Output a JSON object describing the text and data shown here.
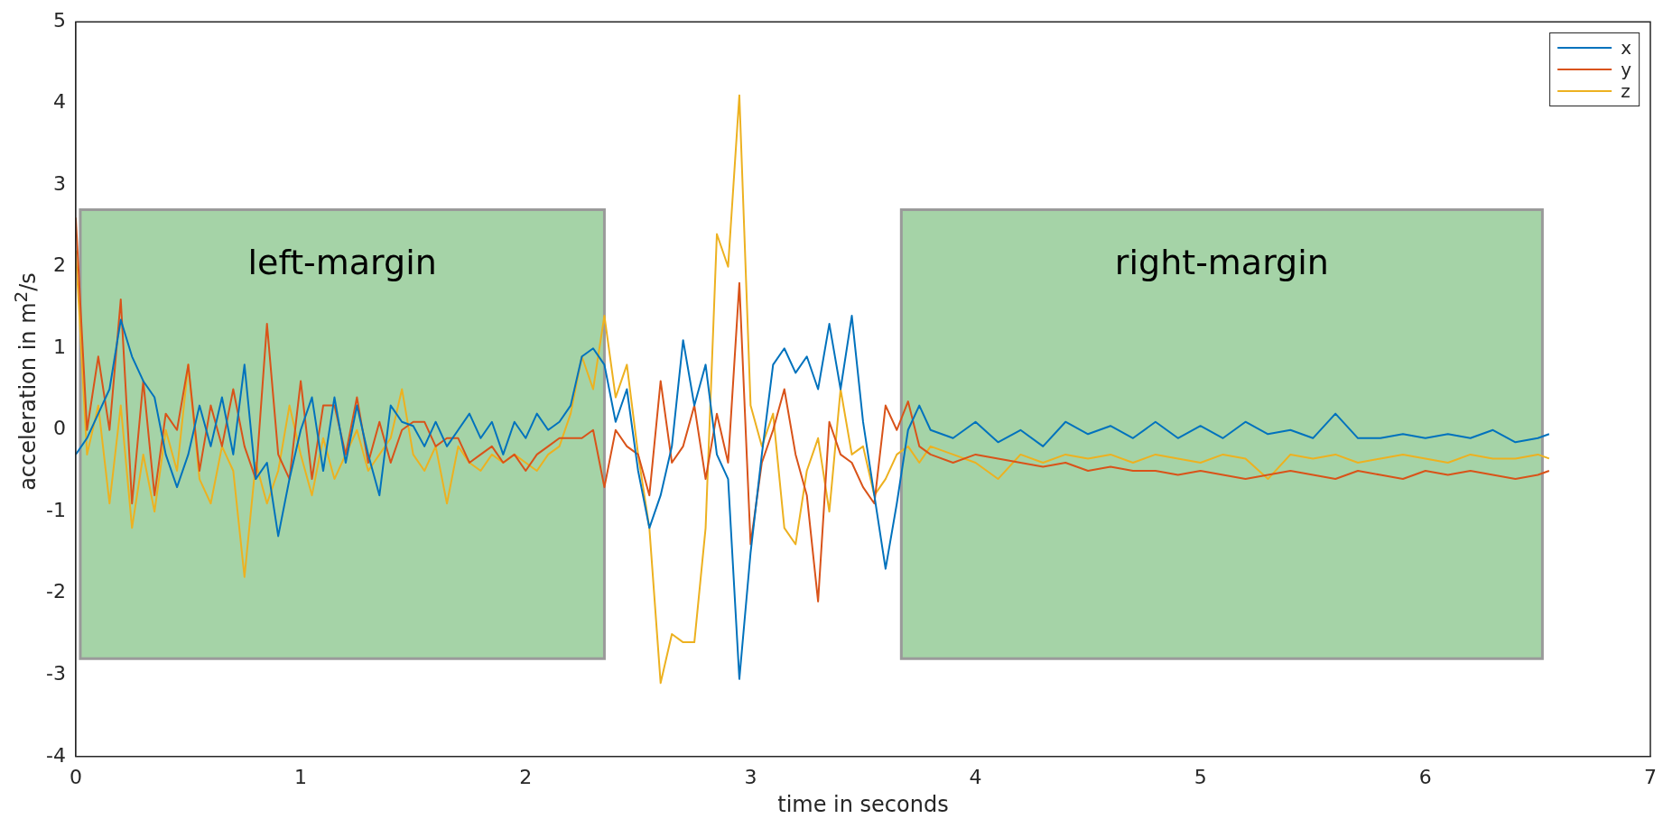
{
  "chart_data": {
    "type": "line",
    "xlabel": "time in seconds",
    "ylabel": "acceleration in m$^{2}$/s",
    "x": [
      0,
      0.05,
      0.1,
      0.15,
      0.2,
      0.25,
      0.3,
      0.35,
      0.4,
      0.45,
      0.5,
      0.55,
      0.6,
      0.65,
      0.7,
      0.75,
      0.8,
      0.85,
      0.9,
      0.95,
      1.0,
      1.05,
      1.1,
      1.15,
      1.2,
      1.25,
      1.3,
      1.35,
      1.4,
      1.45,
      1.5,
      1.55,
      1.6,
      1.65,
      1.7,
      1.75,
      1.8,
      1.85,
      1.9,
      1.95,
      2.0,
      2.05,
      2.1,
      2.15,
      2.2,
      2.25,
      2.3,
      2.35,
      2.4,
      2.45,
      2.5,
      2.55,
      2.6,
      2.65,
      2.7,
      2.75,
      2.8,
      2.85,
      2.9,
      2.95,
      3.0,
      3.05,
      3.1,
      3.15,
      3.2,
      3.25,
      3.3,
      3.35,
      3.4,
      3.45,
      3.5,
      3.55,
      3.6,
      3.65,
      3.7,
      3.75,
      3.8,
      3.9,
      4.0,
      4.1,
      4.2,
      4.3,
      4.4,
      4.5,
      4.6,
      4.7,
      4.8,
      4.9,
      5.0,
      5.1,
      5.2,
      5.3,
      5.4,
      5.5,
      5.6,
      5.7,
      5.8,
      5.9,
      6.0,
      6.1,
      6.2,
      6.3,
      6.4,
      6.5,
      6.55
    ],
    "series": [
      {
        "name": "x",
        "color": "#0072bd",
        "values": [
          -0.3,
          -0.1,
          0.2,
          0.5,
          1.35,
          0.9,
          0.6,
          0.4,
          -0.3,
          -0.7,
          -0.3,
          0.3,
          -0.2,
          0.4,
          -0.3,
          0.8,
          -0.6,
          -0.4,
          -1.3,
          -0.6,
          0.0,
          0.4,
          -0.5,
          0.4,
          -0.4,
          0.3,
          -0.3,
          -0.8,
          0.3,
          0.1,
          0.05,
          -0.2,
          0.1,
          -0.2,
          0.0,
          0.2,
          -0.1,
          0.1,
          -0.3,
          0.1,
          -0.1,
          0.2,
          0.0,
          0.1,
          0.3,
          0.9,
          1.0,
          0.8,
          0.1,
          0.5,
          -0.5,
          -1.2,
          -0.8,
          -0.2,
          1.1,
          0.3,
          0.8,
          -0.3,
          -0.6,
          -3.05,
          -1.5,
          -0.3,
          0.8,
          1.0,
          0.7,
          0.9,
          0.5,
          1.3,
          0.5,
          1.4,
          0.1,
          -0.8,
          -1.7,
          -0.9,
          0.0,
          0.3,
          0.0,
          -0.1,
          0.1,
          -0.15,
          0.0,
          -0.2,
          0.1,
          -0.05,
          0.05,
          -0.1,
          0.1,
          -0.1,
          0.05,
          -0.1,
          0.1,
          -0.05,
          0.0,
          -0.1,
          0.2,
          -0.1,
          -0.1,
          -0.05,
          -0.1,
          -0.05,
          -0.1,
          0.0,
          -0.15,
          -0.1,
          -0.05
        ]
      },
      {
        "name": "y",
        "color": "#d95319",
        "values": [
          2.6,
          0.0,
          0.9,
          0.0,
          1.6,
          -0.9,
          0.6,
          -0.8,
          0.2,
          0.0,
          0.8,
          -0.5,
          0.3,
          -0.2,
          0.5,
          -0.2,
          -0.6,
          1.3,
          -0.3,
          -0.6,
          0.6,
          -0.6,
          0.3,
          0.3,
          -0.3,
          0.4,
          -0.4,
          0.1,
          -0.4,
          0.0,
          0.1,
          0.1,
          -0.2,
          -0.1,
          -0.1,
          -0.4,
          -0.3,
          -0.2,
          -0.4,
          -0.3,
          -0.5,
          -0.3,
          -0.2,
          -0.1,
          -0.1,
          -0.1,
          0.0,
          -0.7,
          0.0,
          -0.2,
          -0.3,
          -0.8,
          0.6,
          -0.4,
          -0.2,
          0.3,
          -0.6,
          0.2,
          -0.4,
          1.8,
          -1.4,
          -0.4,
          0.0,
          0.5,
          -0.3,
          -0.8,
          -2.1,
          0.1,
          -0.3,
          -0.4,
          -0.7,
          -0.9,
          0.3,
          0.0,
          0.35,
          -0.2,
          -0.3,
          -0.4,
          -0.3,
          -0.35,
          -0.4,
          -0.45,
          -0.4,
          -0.5,
          -0.45,
          -0.5,
          -0.5,
          -0.55,
          -0.5,
          -0.55,
          -0.6,
          -0.55,
          -0.5,
          -0.55,
          -0.6,
          -0.5,
          -0.55,
          -0.6,
          -0.5,
          -0.55,
          -0.5,
          -0.55,
          -0.6,
          -0.55,
          -0.5
        ]
      },
      {
        "name": "z",
        "color": "#edb120",
        "values": [
          2.2,
          -0.3,
          0.3,
          -0.9,
          0.3,
          -1.2,
          -0.3,
          -1.0,
          0.0,
          -0.5,
          0.8,
          -0.6,
          -0.9,
          -0.2,
          -0.5,
          -1.8,
          -0.4,
          -0.9,
          -0.5,
          0.3,
          -0.3,
          -0.8,
          -0.1,
          -0.6,
          -0.3,
          0.0,
          -0.5,
          -0.3,
          -0.1,
          0.5,
          -0.3,
          -0.5,
          -0.2,
          -0.9,
          -0.2,
          -0.4,
          -0.5,
          -0.3,
          -0.4,
          -0.3,
          -0.4,
          -0.5,
          -0.3,
          -0.2,
          0.2,
          0.9,
          0.5,
          1.4,
          0.4,
          0.8,
          -0.3,
          -1.2,
          -3.1,
          -2.5,
          -2.6,
          -2.6,
          -1.2,
          2.4,
          2.0,
          4.1,
          0.3,
          -0.2,
          0.2,
          -1.2,
          -1.4,
          -0.5,
          -0.1,
          -1.0,
          0.5,
          -0.3,
          -0.2,
          -0.8,
          -0.6,
          -0.3,
          -0.2,
          -0.4,
          -0.2,
          -0.3,
          -0.4,
          -0.6,
          -0.3,
          -0.4,
          -0.3,
          -0.35,
          -0.3,
          -0.4,
          -0.3,
          -0.35,
          -0.4,
          -0.3,
          -0.35,
          -0.6,
          -0.3,
          -0.35,
          -0.3,
          -0.4,
          -0.35,
          -0.3,
          -0.35,
          -0.4,
          -0.3,
          -0.35,
          -0.35,
          -0.3,
          -0.35
        ]
      }
    ],
    "xlim": [
      0,
      7
    ],
    "xticks": [
      0,
      1,
      2,
      3,
      4,
      5,
      6,
      7
    ],
    "ylim": [
      -4,
      5
    ],
    "yticks": [
      -4,
      -3,
      -2,
      -1,
      0,
      1,
      2,
      3,
      4,
      5
    ],
    "bands": [
      {
        "axis": "x",
        "from": 0.02,
        "to": 2.35,
        "label": "left-margin",
        "color": "#a5d3a7"
      },
      {
        "axis": "x",
        "from": 3.67,
        "to": 6.52,
        "label": "right-margin",
        "color": "#a5d3a7"
      }
    ],
    "grid": false,
    "legend": "top right",
    "marker": "none",
    "line_style": "solid"
  }
}
